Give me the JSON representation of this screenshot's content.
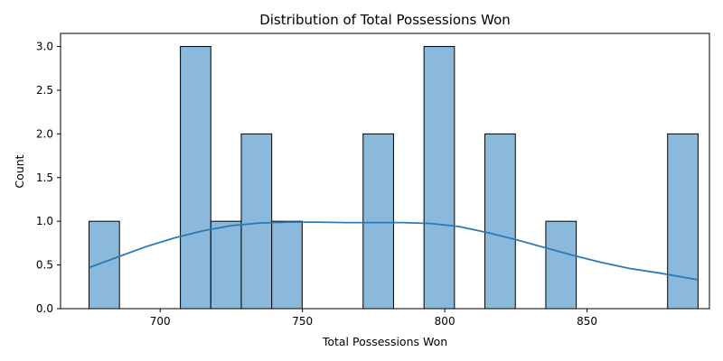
{
  "chart_data": {
    "type": "bar",
    "subtype": "histogram-with-kde",
    "title": "Distribution of Total Possessions Won",
    "xlabel": "Total Possessions Won",
    "ylabel": "Count",
    "xlim": [
      665,
      893
    ],
    "ylim": [
      0,
      3.15
    ],
    "x_ticks": [
      700,
      750,
      800,
      850
    ],
    "y_ticks": [
      0.0,
      0.5,
      1.0,
      1.5,
      2.0,
      2.5,
      3.0
    ],
    "grid": false,
    "legend": "none",
    "bar_color": "#8ab9db",
    "bar_edge_color": "#000000",
    "kde_color": "#2a7ab5",
    "bins": [
      {
        "x0": 675.0,
        "x1": 685.7,
        "count": 1
      },
      {
        "x0": 685.7,
        "x1": 696.4,
        "count": 0
      },
      {
        "x0": 696.4,
        "x1": 707.1,
        "count": 0
      },
      {
        "x0": 707.1,
        "x1": 717.8,
        "count": 3
      },
      {
        "x0": 717.8,
        "x1": 728.5,
        "count": 1
      },
      {
        "x0": 728.5,
        "x1": 739.2,
        "count": 2
      },
      {
        "x0": 739.2,
        "x1": 749.9,
        "count": 1
      },
      {
        "x0": 749.9,
        "x1": 760.6,
        "count": 0
      },
      {
        "x0": 760.6,
        "x1": 771.3,
        "count": 0
      },
      {
        "x0": 771.3,
        "x1": 782.0,
        "count": 2
      },
      {
        "x0": 782.0,
        "x1": 792.7,
        "count": 0
      },
      {
        "x0": 792.7,
        "x1": 803.4,
        "count": 3
      },
      {
        "x0": 803.4,
        "x1": 814.1,
        "count": 0
      },
      {
        "x0": 814.1,
        "x1": 824.8,
        "count": 2
      },
      {
        "x0": 824.8,
        "x1": 835.5,
        "count": 0
      },
      {
        "x0": 835.5,
        "x1": 846.2,
        "count": 1
      },
      {
        "x0": 846.2,
        "x1": 856.9,
        "count": 0
      },
      {
        "x0": 856.9,
        "x1": 867.6,
        "count": 0
      },
      {
        "x0": 867.6,
        "x1": 878.3,
        "count": 0
      },
      {
        "x0": 878.3,
        "x1": 889.0,
        "count": 2
      }
    ],
    "kde": {
      "x": [
        675,
        685,
        695,
        705,
        715,
        725,
        735,
        745,
        755,
        765,
        775,
        785,
        795,
        805,
        815,
        825,
        835,
        845,
        855,
        865,
        875,
        889
      ],
      "y": [
        0.47,
        0.59,
        0.71,
        0.81,
        0.89,
        0.95,
        0.98,
        0.99,
        0.99,
        0.985,
        0.985,
        0.985,
        0.975,
        0.94,
        0.87,
        0.79,
        0.7,
        0.61,
        0.53,
        0.46,
        0.41,
        0.33
      ]
    }
  }
}
